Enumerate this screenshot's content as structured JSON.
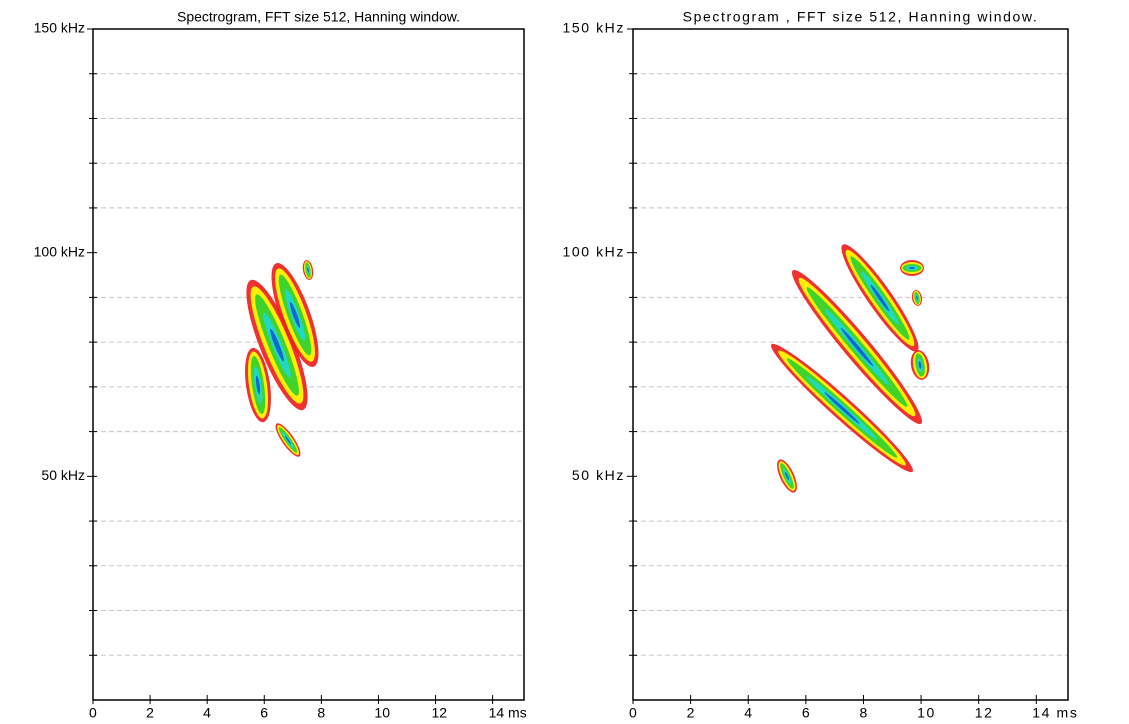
{
  "chart_data": [
    {
      "type": "spectrogram",
      "title": "Spectrogram, FFT size 512, Hanning window.",
      "xlim": [
        0,
        15.1
      ],
      "ylim": [
        0,
        150
      ],
      "xticks": [
        0,
        2,
        4,
        6,
        8,
        10,
        12,
        {
          "value": 14,
          "label": "14 ms"
        }
      ],
      "yticks": [
        {
          "value": 50,
          "label": "50 kHz"
        },
        {
          "value": 100,
          "label": "100 kHz"
        },
        {
          "value": 150,
          "label": "150 kHz"
        }
      ],
      "minor_yticks": [
        10,
        20,
        30,
        40,
        60,
        70,
        80,
        90,
        110,
        120,
        130,
        140
      ],
      "grid": true
    },
    {
      "type": "spectrogram",
      "title": "Spectrogram , FFT size 512, Hanning window.",
      "xlim": [
        0,
        15.1
      ],
      "ylim": [
        0,
        150
      ],
      "xticks": [
        0,
        2,
        4,
        6,
        8,
        10,
        12,
        {
          "value": 14,
          "label": "14 ms"
        }
      ],
      "yticks": [
        {
          "value": 50,
          "label": "50 kHz"
        },
        {
          "value": 100,
          "label": "100 kHz"
        },
        {
          "value": 150,
          "label": "150 kHz"
        }
      ],
      "minor_yticks": [
        10,
        20,
        30,
        40,
        60,
        70,
        80,
        90,
        110,
        120,
        130,
        140
      ],
      "grid": true
    }
  ]
}
